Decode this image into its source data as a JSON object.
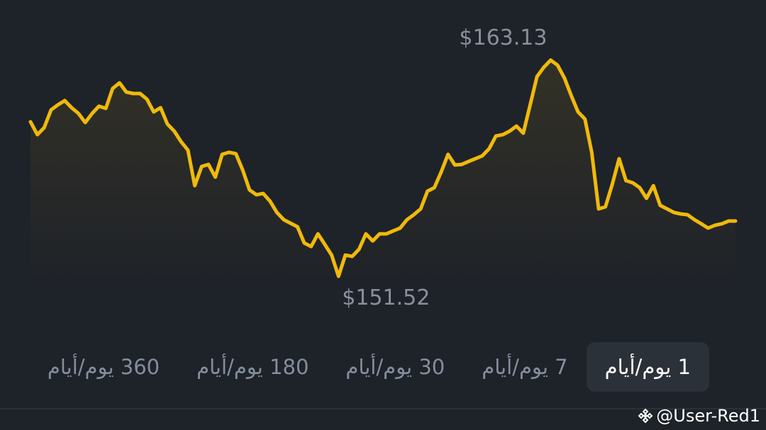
{
  "chart_data": {
    "type": "line",
    "color": "#f0b90b",
    "ylim": [
      150.76,
      164.46
    ],
    "values": [
      159.82,
      159.13,
      159.51,
      160.46,
      160.73,
      160.96,
      160.58,
      160.27,
      159.78,
      160.27,
      160.66,
      160.54,
      161.61,
      161.91,
      161.42,
      161.34,
      161.34,
      161.04,
      160.35,
      160.58,
      159.7,
      159.32,
      158.75,
      158.3,
      156.39,
      157.42,
      157.53,
      156.85,
      158.07,
      158.18,
      158.11,
      157.23,
      156.16,
      155.9,
      155.97,
      155.55,
      154.95,
      154.56,
      154.37,
      154.18,
      153.31,
      153.12,
      153.8,
      153.23,
      152.66,
      151.52,
      152.66,
      152.59,
      152.97,
      153.8,
      153.42,
      153.8,
      153.8,
      153.96,
      154.11,
      154.56,
      154.83,
      155.14,
      156.09,
      156.28,
      157.12,
      158.07,
      157.5,
      157.53,
      157.69,
      157.84,
      157.99,
      158.37,
      159.06,
      159.13,
      159.32,
      159.59,
      159.21,
      160.73,
      162.25,
      162.75,
      163.13,
      162.86,
      162.18,
      161.23,
      160.35,
      159.97,
      158.18,
      155.14,
      155.25,
      156.47,
      157.84,
      156.66,
      156.54,
      156.28,
      155.71,
      156.39,
      155.33,
      155.14,
      154.95,
      154.87,
      154.83,
      154.56,
      154.34,
      154.11,
      154.26,
      154.34,
      154.49,
      154.49
    ],
    "annotations": [
      {
        "text": "$163.13",
        "value": 163.13
      },
      {
        "text": "$151.52",
        "value": 151.52
      }
    ]
  },
  "tabs": [
    "1 يوم/أيام",
    "7 يوم/أيام",
    "30 يوم/أيام",
    "180 يوم/أيام",
    "360 يوم/أيام"
  ],
  "selected_tab": 0,
  "watermark": "@User-Red1"
}
